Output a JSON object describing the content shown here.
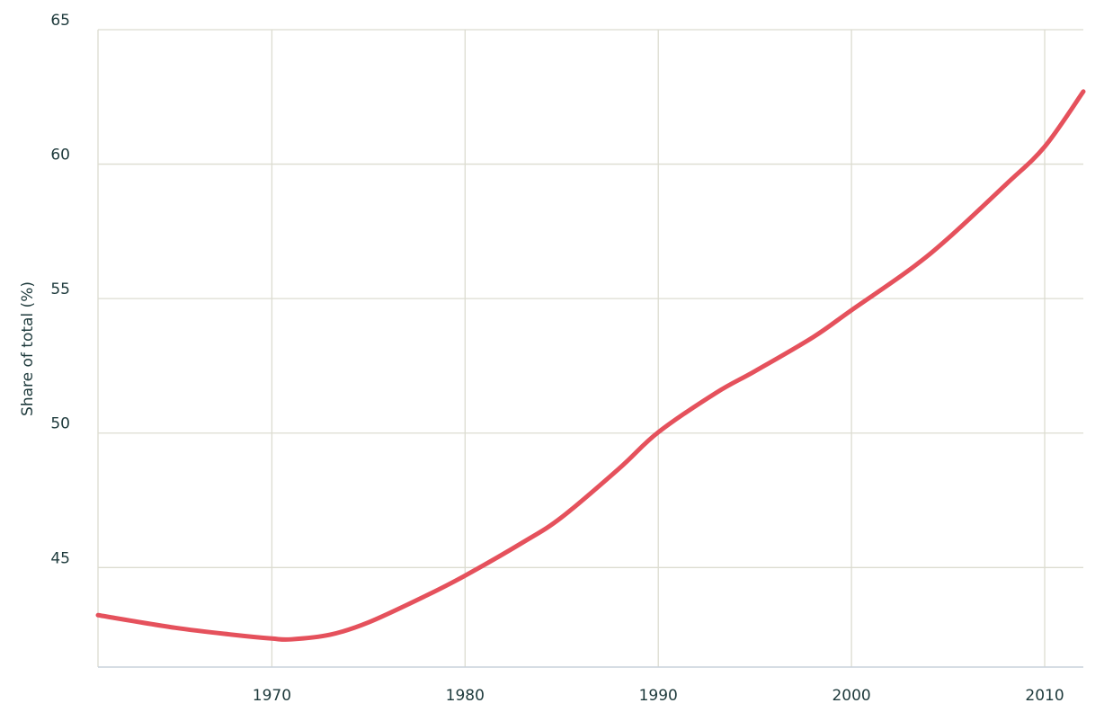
{
  "chart_data": {
    "type": "line",
    "y_label": "Share of total (%)",
    "x": [
      1961,
      1965,
      1968,
      1970,
      1971,
      1973,
      1975,
      1978,
      1980,
      1983,
      1985,
      1988,
      1990,
      1993,
      1995,
      1998,
      2000,
      2003,
      2005,
      2008,
      2010,
      2012
    ],
    "series": [
      {
        "color": "#e5515c",
        "values": [
          43.23,
          42.76,
          42.5,
          42.36,
          42.33,
          42.5,
          42.96,
          43.96,
          44.7,
          45.94,
          46.87,
          48.7,
          50.03,
          51.5,
          52.3,
          53.56,
          54.57,
          56.07,
          57.24,
          59.25,
          60.65,
          62.7
        ]
      }
    ],
    "xlim": [
      1961,
      2012
    ],
    "xticks": [
      1970,
      1980,
      1990,
      2000,
      2010
    ],
    "ylim": [
      41.3,
      65
    ],
    "yticks": [
      45,
      50,
      55,
      60,
      65
    ],
    "grid": true
  }
}
